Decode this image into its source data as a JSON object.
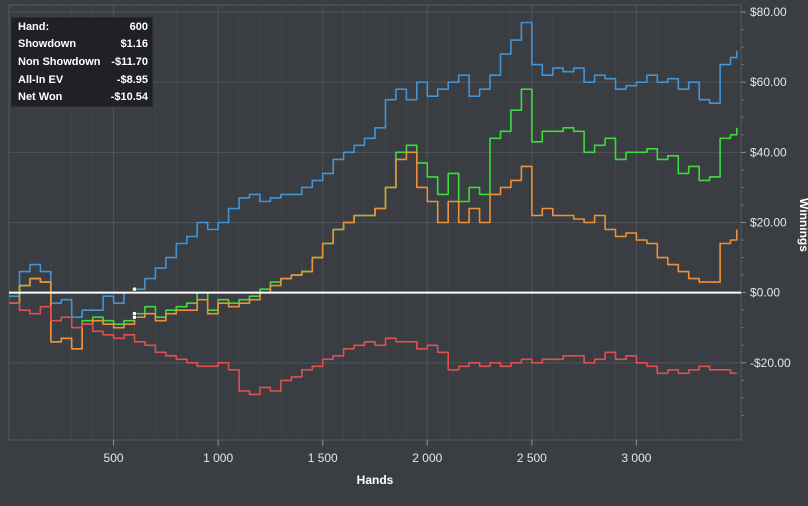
{
  "chart_data": {
    "type": "line",
    "xlabel": "Hands",
    "ylabel": "Winnings",
    "xlim": [
      0,
      3500
    ],
    "ylim": [
      -42,
      82
    ],
    "x_ticks": [
      500,
      1000,
      1500,
      2000,
      2500,
      3000
    ],
    "x_tick_labels": [
      "500",
      "1 000",
      "1 500",
      "2 000",
      "2 500",
      "3 000"
    ],
    "y_ticks": [
      80,
      60,
      40,
      20,
      0,
      -20
    ],
    "y_tick_labels": [
      "$80.00",
      "$60.00",
      "$40.00",
      "$20.00",
      "$0.00",
      "-$20.00"
    ],
    "grid": true,
    "zero_line": true,
    "x": [
      0,
      50,
      100,
      150,
      200,
      250,
      300,
      350,
      400,
      450,
      500,
      550,
      600,
      650,
      700,
      750,
      800,
      850,
      900,
      950,
      1000,
      1050,
      1100,
      1150,
      1200,
      1250,
      1300,
      1350,
      1400,
      1450,
      1500,
      1550,
      1600,
      1650,
      1700,
      1750,
      1800,
      1850,
      1900,
      1950,
      2000,
      2050,
      2100,
      2150,
      2200,
      2250,
      2300,
      2350,
      2400,
      2450,
      2500,
      2550,
      2600,
      2650,
      2700,
      2750,
      2800,
      2850,
      2900,
      2950,
      3000,
      3050,
      3100,
      3150,
      3200,
      3250,
      3300,
      3350,
      3400,
      3450,
      3480
    ],
    "series": [
      {
        "color": "#3f95d8",
        "values": [
          -1,
          6,
          8,
          6,
          -3,
          -2,
          -7,
          -5,
          -5,
          -1,
          -3,
          0,
          1,
          4,
          7,
          10,
          14,
          16,
          20,
          18,
          20,
          24,
          27,
          28,
          26,
          27,
          28,
          28,
          30,
          32,
          34,
          38,
          40,
          42,
          44,
          47,
          55,
          58,
          55,
          60,
          56,
          58,
          60,
          62,
          56,
          58,
          62,
          68,
          72,
          77,
          65,
          62,
          64,
          63,
          64,
          60,
          62,
          61,
          58,
          59,
          60,
          62,
          60,
          61,
          58,
          60,
          55,
          54,
          65,
          67,
          69
        ]
      },
      {
        "color": "#3ddc3d",
        "values": [
          -3,
          2,
          4,
          3,
          -14,
          -13,
          -16,
          -8,
          -7,
          -8,
          -9,
          -8,
          -6,
          -4,
          -7,
          -5,
          -4,
          -3,
          0,
          -5,
          -2,
          -3,
          -2,
          -1,
          1,
          3,
          4,
          5,
          6,
          10,
          14,
          18,
          20,
          22,
          22,
          24,
          30,
          40,
          42,
          37,
          33,
          28,
          34,
          26,
          30,
          28,
          44,
          46,
          52,
          58,
          43,
          46,
          46,
          47,
          46,
          40,
          42,
          44,
          38,
          40,
          40,
          41,
          38,
          39,
          34,
          36,
          32,
          33,
          44,
          45,
          47
        ]
      },
      {
        "color": "#f0903a",
        "values": [
          -3,
          2,
          4,
          3,
          -14,
          -13,
          -16,
          -9,
          -8,
          -9,
          -10,
          -9,
          -7,
          -6,
          -8,
          -6,
          -5,
          -5,
          -2,
          -6,
          -3,
          -4,
          -3,
          -2,
          0,
          2,
          4,
          5,
          6,
          10,
          14,
          18,
          20,
          22,
          22,
          24,
          30,
          38,
          40,
          30,
          26,
          20,
          26,
          20,
          24,
          20,
          28,
          30,
          32,
          36,
          22,
          24,
          22,
          22,
          21,
          20,
          22,
          18,
          16,
          17,
          15,
          14,
          10,
          8,
          6,
          4,
          3,
          3,
          14,
          15,
          18
        ]
      },
      {
        "color": "#e05050",
        "values": [
          -3,
          -5,
          -6,
          -4,
          -8,
          -7,
          -10,
          -9,
          -11,
          -12,
          -13,
          -12,
          -14,
          -15,
          -17,
          -18,
          -19,
          -20,
          -21,
          -21,
          -20,
          -22,
          -28,
          -29,
          -27,
          -28,
          -25,
          -24,
          -22,
          -21,
          -19,
          -18,
          -16,
          -15,
          -14,
          -15,
          -13,
          -14,
          -14,
          -16,
          -15,
          -17,
          -22,
          -21,
          -20,
          -21,
          -20,
          -21,
          -20,
          -19,
          -20,
          -19,
          -19,
          -18,
          -18,
          -20,
          -19,
          -17,
          -19,
          -18,
          -20,
          -21,
          -23,
          -22,
          -23,
          -22,
          -21,
          -22,
          -22,
          -23,
          -23
        ]
      }
    ]
  },
  "stats": {
    "rows": [
      {
        "label": "Hand:",
        "value": "600"
      },
      {
        "label": "Showdown",
        "value": "$1.16"
      },
      {
        "label": "Non Showdown",
        "value": "-$11.70"
      },
      {
        "label": "All-In EV",
        "value": "-$8.95"
      },
      {
        "label": "Net Won",
        "value": "-$10.54"
      }
    ]
  },
  "colors": {
    "background": "#3a3d42",
    "grid": "#50545a",
    "zero_line": "#ffffff",
    "tooltip_bg": "#1f2124"
  }
}
